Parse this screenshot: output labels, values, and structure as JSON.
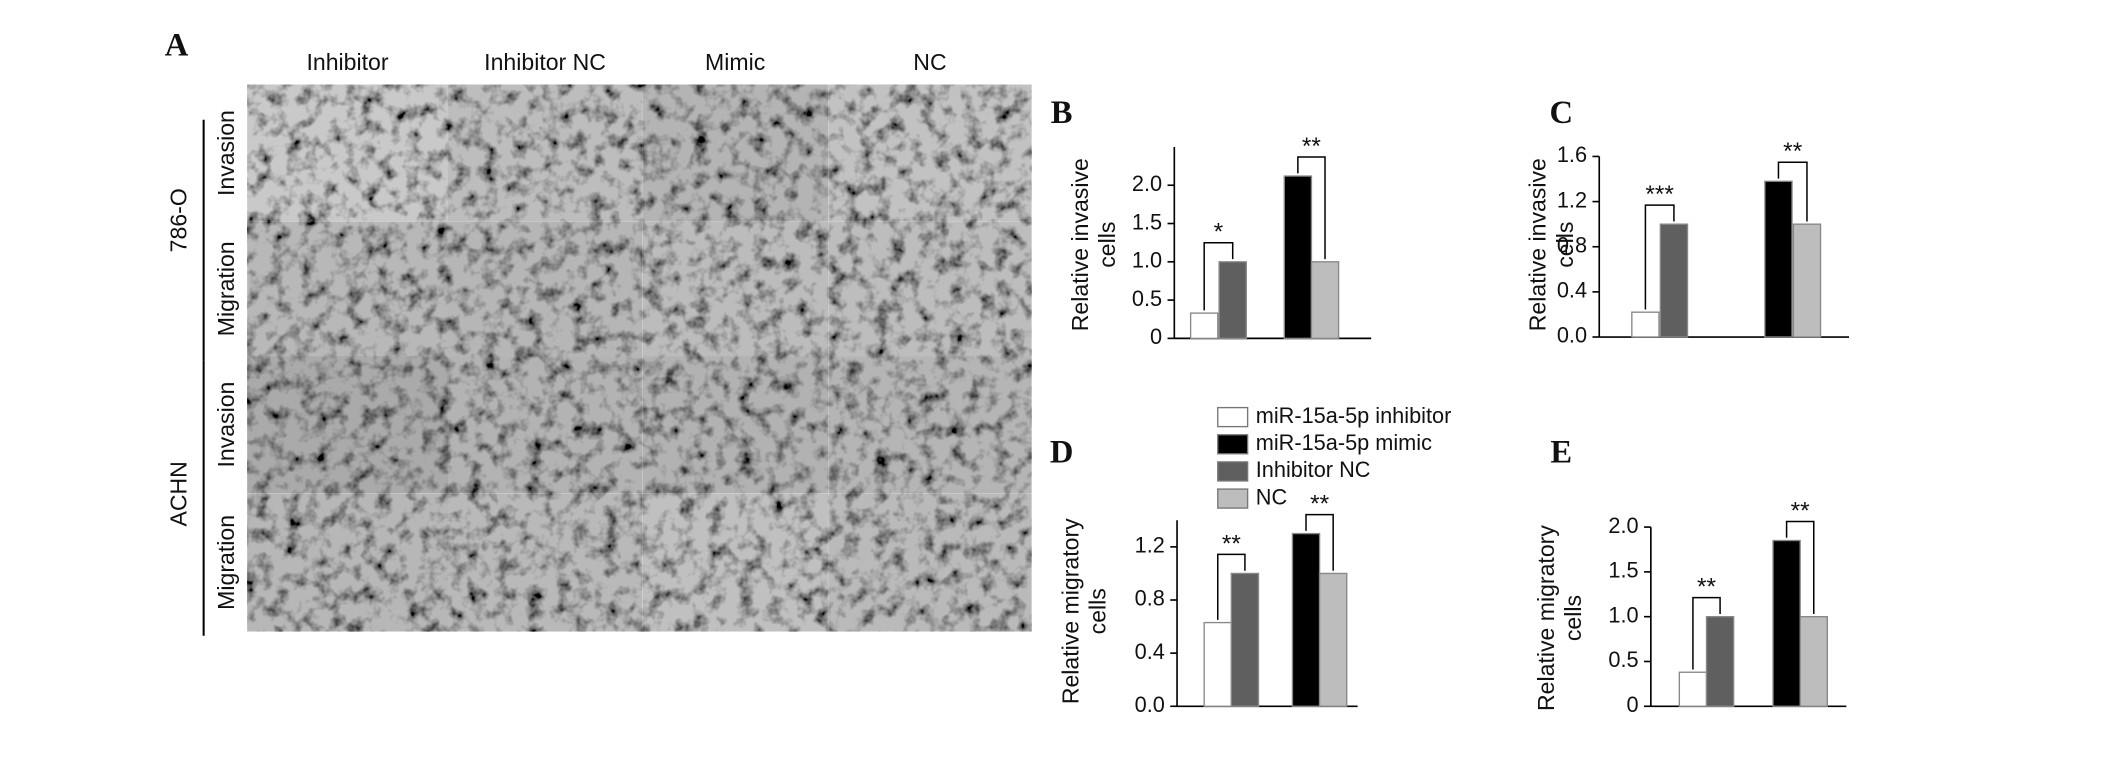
{
  "panel_a": {
    "label": "A",
    "columns": [
      "Inhibitor",
      "Inhibitor NC",
      "Mimic",
      "NC"
    ],
    "groups": [
      {
        "name": "786-O",
        "rows": [
          "Invasion",
          "Migration"
        ]
      },
      {
        "name": "ACHN",
        "rows": [
          "Invasion",
          "Migration"
        ]
      }
    ]
  },
  "legend": [
    {
      "name": "miR-15a-5p inhibitor",
      "color": "#ffffff"
    },
    {
      "name": "miR-15a-5p mimic",
      "color": "#000000"
    },
    {
      "name": "Inhibitor NC",
      "color": "#5f5f5f"
    },
    {
      "name": "NC",
      "color": "#bdbdbd"
    }
  ],
  "chart_data": [
    {
      "type": "bar",
      "panel_label": "B",
      "ylabel": [
        "Relative invasive",
        "cells"
      ],
      "values": [
        0.33,
        1.0,
        2.12,
        1.0
      ],
      "annotations": [
        "*",
        "**"
      ],
      "ylim": [
        0,
        2.5
      ],
      "yticks": [
        0,
        0.5,
        {
          "value": 1,
          "label": "1.0"
        },
        1.5,
        {
          "value": 2,
          "label": "2.0"
        }
      ]
    },
    {
      "type": "bar",
      "panel_label": "C",
      "ylabel": [
        "Relative invasive",
        "cells"
      ],
      "values": [
        0.22,
        1.0,
        1.38,
        1.0
      ],
      "annotations": [
        "***",
        "**"
      ],
      "ylim": [
        0,
        1.6
      ],
      "yticks": [
        {
          "value": 0,
          "label": "0.0"
        },
        0.4,
        0.8,
        1.2,
        1.6
      ]
    },
    {
      "type": "bar",
      "panel_label": "D",
      "ylabel": [
        "Relative migratory",
        "cells"
      ],
      "values": [
        0.63,
        1.0,
        1.3,
        1.0
      ],
      "annotations": [
        "**",
        "**"
      ],
      "ylim": [
        0,
        1.4
      ],
      "yticks": [
        {
          "value": 0,
          "label": "0.0"
        },
        0.4,
        0.8,
        1.2
      ]
    },
    {
      "type": "bar",
      "panel_label": "E",
      "ylabel": [
        "Relative migratory",
        "cells"
      ],
      "values": [
        0.38,
        1.0,
        1.85,
        1.0
      ],
      "annotations": [
        "**",
        "**"
      ],
      "ylim": [
        0,
        2.0
      ],
      "yticks": [
        0,
        0.5,
        {
          "value": 1,
          "label": "1.0"
        },
        1.5,
        {
          "value": 2,
          "label": "2.0"
        }
      ]
    }
  ]
}
